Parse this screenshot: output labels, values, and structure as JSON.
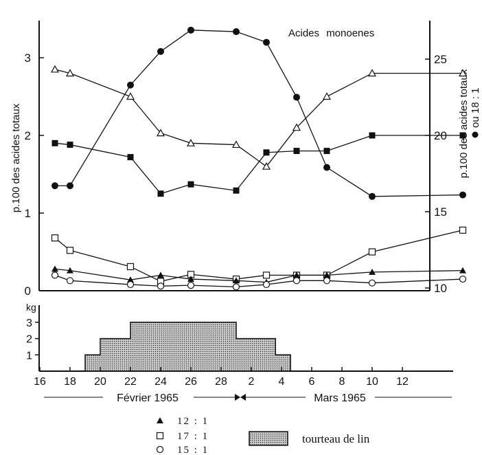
{
  "chart_data": [
    {
      "type": "line",
      "title": "Acides monoenes",
      "ylabel_left": "p.100 des acides totaux",
      "ylabel_right": "p.100 des acides totaux",
      "ylabel_right_sub": "ou 18 : 1",
      "ylim_left": [
        0,
        3.5
      ],
      "ylim_right": [
        10,
        28
      ],
      "yticks_left": [
        "0",
        "1",
        "2",
        "3"
      ],
      "yticks_right": [
        "10",
        "15",
        "20",
        "25"
      ],
      "x_days": [
        17,
        18,
        22,
        24,
        26,
        29,
        31,
        33,
        35,
        38,
        44
      ],
      "series": [
        {
          "marker": "filled-circle",
          "axis": "right",
          "indices": [
            0,
            1,
            2,
            3,
            4,
            5,
            6,
            7,
            8,
            9,
            10
          ],
          "values": [
            16.7,
            16.7,
            23.3,
            25.5,
            26.9,
            26.8,
            26.1,
            22.5,
            17.9,
            16.0,
            16.1
          ]
        },
        {
          "marker": "open-triangle",
          "axis": "left",
          "indices": [
            0,
            1,
            2,
            3,
            4,
            5,
            6,
            7,
            8,
            9,
            10
          ],
          "values": [
            2.85,
            2.8,
            2.5,
            2.03,
            1.9,
            1.88,
            1.6,
            2.1,
            2.5,
            2.8,
            2.8
          ]
        },
        {
          "marker": "filled-square",
          "axis": "left",
          "indices": [
            0,
            1,
            2,
            3,
            4,
            5,
            6,
            7,
            8,
            9,
            10
          ],
          "values": [
            1.9,
            1.88,
            1.72,
            1.25,
            1.37,
            1.29,
            1.78,
            1.8,
            1.8,
            2.0,
            2.0
          ]
        },
        {
          "marker": "open-square",
          "axis": "left",
          "name": "17 : 1",
          "indices": [
            0,
            1,
            2,
            3,
            4,
            5,
            6,
            7,
            8,
            9,
            10
          ],
          "values": [
            0.68,
            0.52,
            0.31,
            0.12,
            0.21,
            0.15,
            0.2,
            0.2,
            0.2,
            0.5,
            0.78
          ]
        },
        {
          "marker": "filled-triangle",
          "axis": "left",
          "name": "12 : 1",
          "indices": [
            0,
            1,
            2,
            3,
            4,
            5,
            6,
            7,
            8,
            9,
            10
          ],
          "values": [
            0.28,
            0.26,
            0.14,
            0.2,
            0.15,
            0.13,
            0.11,
            0.2,
            0.2,
            0.24,
            0.26
          ]
        },
        {
          "marker": "open-circle",
          "axis": "left",
          "name": "15 : 1",
          "indices": [
            0,
            1,
            2,
            3,
            4,
            5,
            6,
            7,
            8,
            9,
            10
          ],
          "values": [
            0.2,
            0.13,
            0.08,
            0.06,
            0.07,
            0.05,
            0.08,
            0.13,
            0.13,
            0.1,
            0.15
          ]
        }
      ]
    },
    {
      "type": "step-area",
      "ylabel": "kg",
      "ylim": [
        0,
        3
      ],
      "yticks": [
        "1",
        "2",
        "3"
      ],
      "steps": [
        {
          "from": 19,
          "to": 20,
          "value": 1
        },
        {
          "from": 20,
          "to": 22,
          "value": 2
        },
        {
          "from": 22,
          "to": 29,
          "value": 3
        },
        {
          "from": 29,
          "to": 31,
          "value": 2
        },
        {
          "from": 31,
          "to": 31.6,
          "value": 2
        },
        {
          "from": 31.6,
          "to": 32.6,
          "value": 1
        }
      ],
      "fill_label": "tourteau de lin"
    }
  ],
  "xaxis": {
    "ticks": [
      {
        "day": 16,
        "label": "16"
      },
      {
        "day": 18,
        "label": "18"
      },
      {
        "day": 20,
        "label": "20"
      },
      {
        "day": 22,
        "label": "22"
      },
      {
        "day": 24,
        "label": "24"
      },
      {
        "day": 26,
        "label": "26"
      },
      {
        "day": 28,
        "label": "28"
      },
      {
        "day": 30,
        "label": "2"
      },
      {
        "day": 32,
        "label": "4"
      },
      {
        "day": 34,
        "label": "6"
      },
      {
        "day": 36,
        "label": "8"
      },
      {
        "day": 38,
        "label": "10"
      },
      {
        "day": 40,
        "label": "12"
      }
    ],
    "month1": "Février 1965",
    "month2": "Mars 1965"
  },
  "legend": {
    "items": [
      {
        "marker": "filled-triangle",
        "label": "12 : 1"
      },
      {
        "marker": "open-square",
        "label": "17 : 1"
      },
      {
        "marker": "open-circle",
        "label": "15 : 1"
      }
    ],
    "fill_label": "tourteau de lin"
  }
}
